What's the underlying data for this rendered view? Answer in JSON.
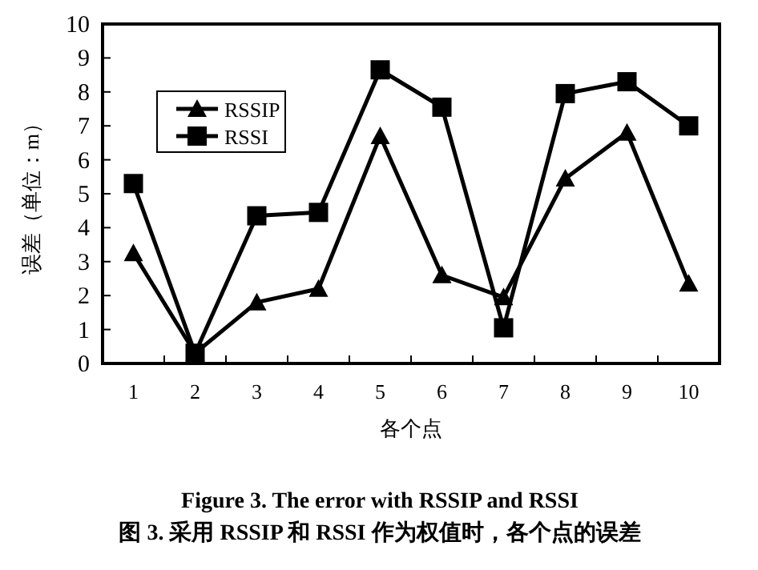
{
  "chart_data": {
    "type": "line",
    "title": "Figure 3. The error with RSSIP and RSSI",
    "subtitle": "图 3. 采用 RSSIP 和 RSSI 作为权值时，各个点的误差",
    "xlabel": "各个点",
    "ylabel": "误差（单位：m）",
    "categories": [
      "1",
      "2",
      "3",
      "4",
      "5",
      "6",
      "7",
      "8",
      "9",
      "10"
    ],
    "series": [
      {
        "name": "RSSIP",
        "color": "#000000",
        "marker": "triangle",
        "values": [
          3.25,
          0.3,
          1.8,
          2.2,
          6.7,
          2.6,
          1.95,
          5.45,
          6.8,
          2.35
        ]
      },
      {
        "name": "RSSI",
        "color": "#000000",
        "marker": "square",
        "values": [
          5.3,
          0.3,
          4.35,
          4.45,
          8.65,
          7.55,
          1.05,
          7.95,
          8.3,
          7.0
        ]
      }
    ],
    "ylim": [
      0,
      10
    ],
    "yticks": [
      0,
      1,
      2,
      3,
      4,
      5,
      6,
      7,
      8,
      9,
      10
    ],
    "grid": false,
    "legend": "top left",
    "line_style": "solid"
  }
}
